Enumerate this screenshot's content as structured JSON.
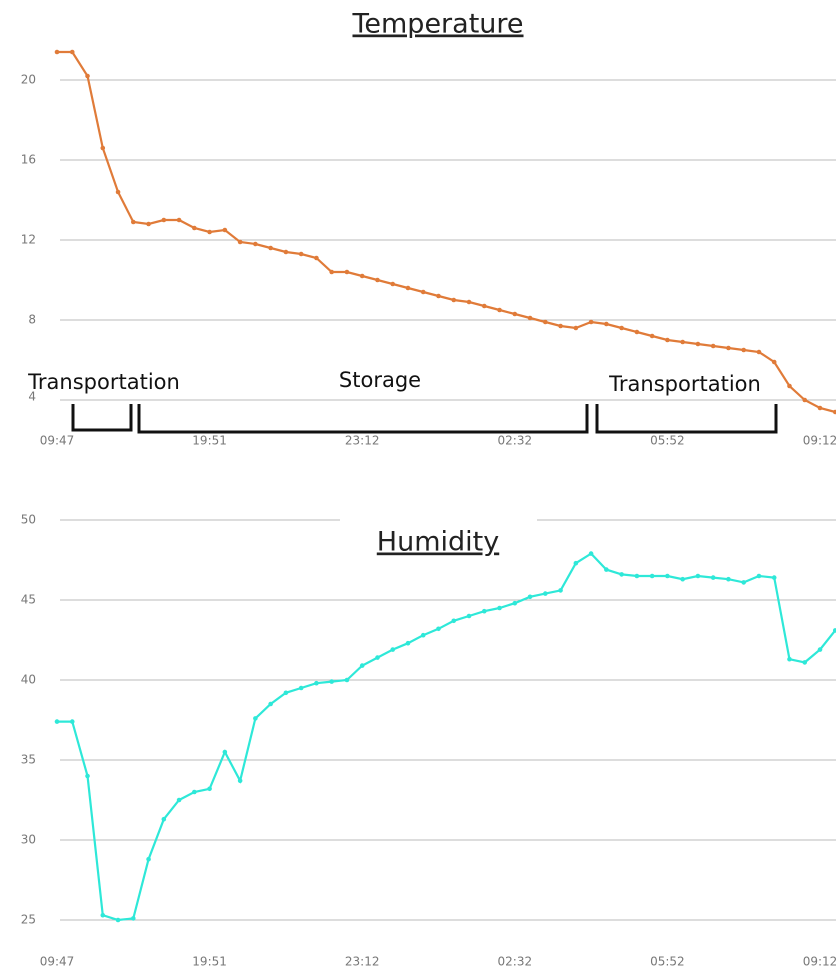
{
  "chart_data": [
    {
      "type": "line",
      "title": "Temperature",
      "categories": [
        "09:47",
        null,
        null,
        null,
        null,
        null,
        null,
        null,
        null,
        null,
        "19:51",
        null,
        null,
        null,
        null,
        null,
        null,
        null,
        null,
        null,
        "23:12",
        null,
        null,
        null,
        null,
        null,
        null,
        null,
        null,
        null,
        "02:32",
        null,
        null,
        null,
        null,
        null,
        null,
        null,
        null,
        null,
        "05:52",
        null,
        null,
        null,
        null,
        null,
        null,
        null,
        null,
        null,
        "09:12",
        null
      ],
      "series": [
        {
          "name": "Temperature",
          "color": "#e07b39",
          "values": [
            21.4,
            21.4,
            20.2,
            16.6,
            14.4,
            12.9,
            12.8,
            13.0,
            13.0,
            12.6,
            12.4,
            12.5,
            11.9,
            11.8,
            11.6,
            11.4,
            11.3,
            11.1,
            10.4,
            10.4,
            10.2,
            10.0,
            9.8,
            9.6,
            9.4,
            9.2,
            9.0,
            8.9,
            8.7,
            8.5,
            8.3,
            8.1,
            7.9,
            7.7,
            7.6,
            7.9,
            7.8,
            7.6,
            7.4,
            7.2,
            7.0,
            6.9,
            6.8,
            6.7,
            6.6,
            6.5,
            6.4,
            5.9,
            4.7,
            4.0,
            3.6,
            3.4
          ]
        }
      ],
      "ylim": [
        3,
        22
      ],
      "yticks": [
        4,
        8,
        12,
        16,
        20
      ],
      "grid": true,
      "annotations": [
        "Transportation",
        "Storage",
        "Transportation"
      ]
    },
    {
      "type": "line",
      "title": "Humidity",
      "categories": [
        "09:47",
        null,
        null,
        null,
        null,
        null,
        null,
        null,
        null,
        null,
        "19:51",
        null,
        null,
        null,
        null,
        null,
        null,
        null,
        null,
        null,
        "23:12",
        null,
        null,
        null,
        null,
        null,
        null,
        null,
        null,
        null,
        "02:32",
        null,
        null,
        null,
        null,
        null,
        null,
        null,
        null,
        null,
        "05:52",
        null,
        null,
        null,
        null,
        null,
        null,
        null,
        null,
        null,
        "09:12",
        null
      ],
      "series": [
        {
          "name": "Humidity",
          "color": "#2ee8d8",
          "values": [
            37.4,
            37.4,
            34.0,
            25.3,
            25.0,
            25.1,
            28.8,
            31.3,
            32.5,
            33.0,
            33.2,
            35.5,
            33.7,
            37.6,
            38.5,
            39.2,
            39.5,
            39.8,
            39.9,
            40.0,
            40.9,
            41.4,
            41.9,
            42.3,
            42.8,
            43.2,
            43.7,
            44.0,
            44.3,
            44.5,
            44.8,
            45.2,
            45.4,
            45.6,
            47.3,
            47.9,
            46.9,
            46.6,
            46.5,
            46.5,
            46.5,
            46.3,
            46.5,
            46.4,
            46.3,
            46.1,
            46.5,
            46.4,
            41.3,
            41.1,
            41.9,
            43.1
          ]
        }
      ],
      "ylim": [
        23,
        50
      ],
      "yticks": [
        25,
        30,
        35,
        40,
        45,
        50
      ],
      "grid": true
    }
  ]
}
